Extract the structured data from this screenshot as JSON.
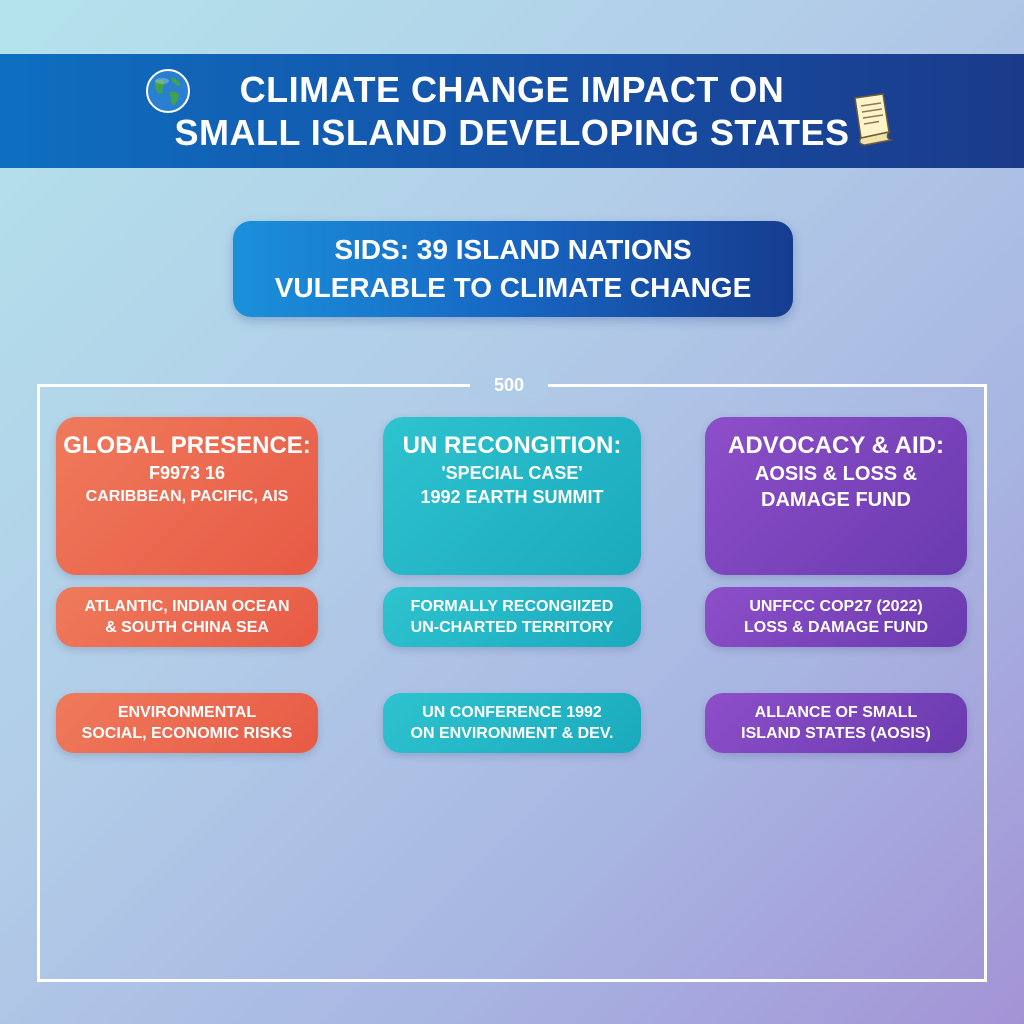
{
  "header": {
    "title_line1": "CLIMATE CHANGE IMPACT ON",
    "title_line2": "SMALL ISLAND DEVELOPING STATES",
    "left_icon": "globe-icon",
    "right_icon": "document-icon"
  },
  "subtitle": {
    "line1": "SIDS: 39 ISLAND NATIONS",
    "line2": "VULERABLE TO CLIMATE CHANGE"
  },
  "frame": {
    "label": "500"
  },
  "columns": [
    {
      "color": "#e85a45",
      "head": {
        "title": "GLOBAL PRESENCE:",
        "line1": "F9973 16",
        "line2": "CARIBBEAN, PACIFIC, AIS"
      },
      "pill1": {
        "line1": "ATLANTIC, INDIAN OCEAN",
        "line2": "& SOUTH CHINA SEA"
      },
      "pill2": {
        "line1": "ENVIRONMENTAL",
        "line2": "SOCIAL, ECONOMIC RISKS"
      }
    },
    {
      "color": "#1aaabd",
      "head": {
        "title": "UN RECONGITION:",
        "line1": "'SPECIAL CASE'",
        "line2": "1992 EARTH SUMMIT"
      },
      "pill1": {
        "line1": "FORMALLY RECONGIIZED",
        "line2": "UN-CHARTED TERRITORY"
      },
      "pill2": {
        "line1": "UN CONFERENCE 1992",
        "line2": "ON ENVIRONMENT & DEV."
      }
    },
    {
      "color": "#6a3aaf",
      "head": {
        "title": "ADVOCACY & AID:",
        "line1": "AOSIS & LOSS &",
        "line2": "DAMAGE FUND"
      },
      "pill1": {
        "line1": "UNFFCC COP27 (2022)",
        "line2": "LOSS & DAMAGE FUND"
      },
      "pill2": {
        "line1": "ALLANCE OF SMALL",
        "line2": "ISLAND STATES (AOSIS)"
      }
    }
  ]
}
